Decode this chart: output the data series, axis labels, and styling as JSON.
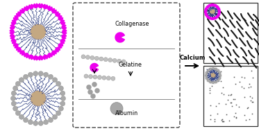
{
  "fig_width": 3.73,
  "fig_height": 1.89,
  "dpi": 100,
  "bg_color": "#ffffff",
  "collagenase_label": "Collagenase",
  "gelatine_label": "Gelatine",
  "albumin_label": "Albumin",
  "calcium_label": "Calcium",
  "pink_color": "#EE00EE",
  "fiber_color": "#3A4A8A",
  "bead_color": "#B8B8B8",
  "center_color": "#C4A882",
  "dark_line": "#1a1a1a",
  "box_edge": "#555555"
}
